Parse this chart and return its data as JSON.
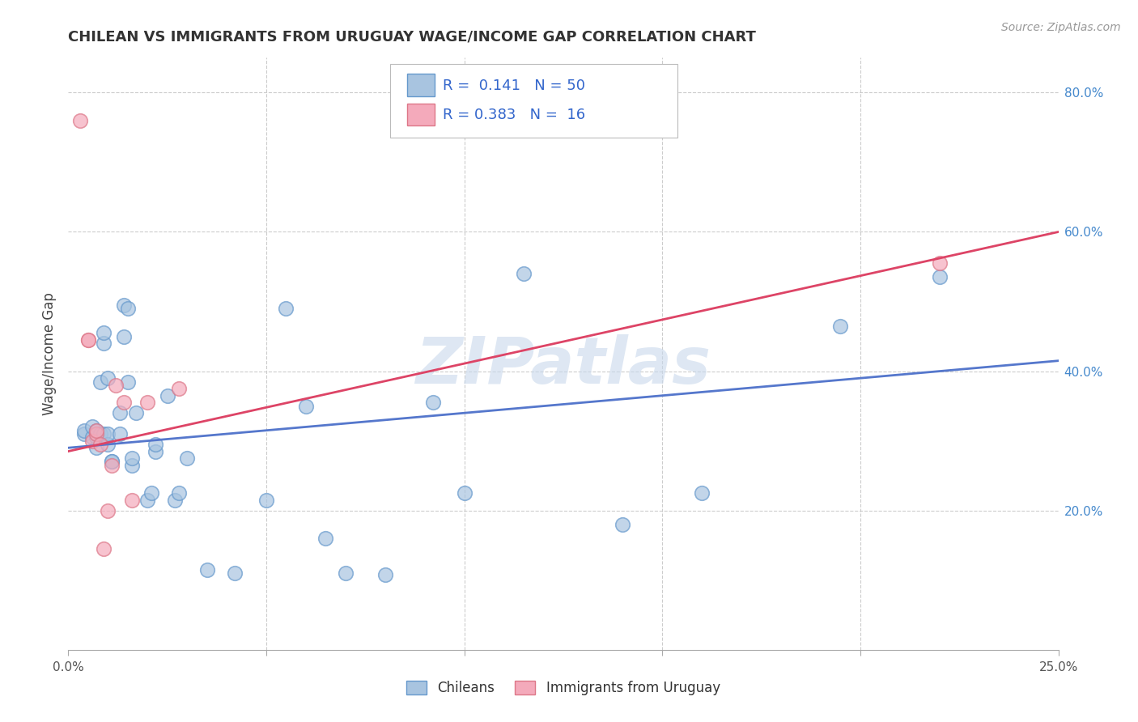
{
  "title": "CHILEAN VS IMMIGRANTS FROM URUGUAY WAGE/INCOME GAP CORRELATION CHART",
  "source": "Source: ZipAtlas.com",
  "ylabel": "Wage/Income Gap",
  "x_min": 0.0,
  "x_max": 0.25,
  "y_min": 0.0,
  "y_max": 0.85,
  "x_ticks": [
    0.0,
    0.05,
    0.1,
    0.15,
    0.2,
    0.25
  ],
  "x_tick_labels": [
    "0.0%",
    "",
    "",
    "",
    "",
    "25.0%"
  ],
  "y_ticks_right": [
    0.2,
    0.4,
    0.6,
    0.8
  ],
  "y_tick_labels_right": [
    "20.0%",
    "40.0%",
    "60.0%",
    "80.0%"
  ],
  "blue_fill": "#A8C4E0",
  "blue_edge": "#6699CC",
  "pink_fill": "#F4AABB",
  "pink_edge": "#DD7788",
  "blue_line_color": "#5577CC",
  "pink_line_color": "#DD4466",
  "R_blue": 0.141,
  "N_blue": 50,
  "R_pink": 0.383,
  "N_pink": 16,
  "legend_label_blue": "Chileans",
  "legend_label_pink": "Immigrants from Uruguay",
  "watermark": "ZIPatlas",
  "blue_scatter_x": [
    0.004,
    0.004,
    0.006,
    0.006,
    0.007,
    0.007,
    0.007,
    0.007,
    0.008,
    0.008,
    0.009,
    0.009,
    0.009,
    0.01,
    0.01,
    0.01,
    0.011,
    0.011,
    0.013,
    0.013,
    0.014,
    0.014,
    0.015,
    0.015,
    0.016,
    0.016,
    0.017,
    0.02,
    0.021,
    0.022,
    0.022,
    0.025,
    0.027,
    0.028,
    0.03,
    0.035,
    0.042,
    0.05,
    0.055,
    0.06,
    0.065,
    0.07,
    0.08,
    0.092,
    0.1,
    0.115,
    0.14,
    0.16,
    0.195,
    0.22
  ],
  "blue_scatter_y": [
    0.31,
    0.315,
    0.305,
    0.32,
    0.29,
    0.305,
    0.31,
    0.315,
    0.31,
    0.385,
    0.44,
    0.455,
    0.31,
    0.295,
    0.31,
    0.39,
    0.27,
    0.27,
    0.31,
    0.34,
    0.45,
    0.495,
    0.385,
    0.49,
    0.265,
    0.275,
    0.34,
    0.215,
    0.225,
    0.285,
    0.295,
    0.365,
    0.215,
    0.225,
    0.275,
    0.115,
    0.11,
    0.215,
    0.49,
    0.35,
    0.16,
    0.11,
    0.108,
    0.355,
    0.225,
    0.54,
    0.18,
    0.225,
    0.465,
    0.535
  ],
  "pink_scatter_x": [
    0.003,
    0.005,
    0.005,
    0.006,
    0.007,
    0.007,
    0.008,
    0.009,
    0.01,
    0.011,
    0.012,
    0.014,
    0.016,
    0.02,
    0.028,
    0.22
  ],
  "pink_scatter_y": [
    0.76,
    0.445,
    0.445,
    0.3,
    0.31,
    0.315,
    0.295,
    0.145,
    0.2,
    0.265,
    0.38,
    0.355,
    0.215,
    0.355,
    0.375,
    0.555
  ],
  "blue_line_x0": 0.0,
  "blue_line_x1": 0.25,
  "blue_line_y0": 0.29,
  "blue_line_y1": 0.415,
  "pink_line_x0": 0.0,
  "pink_line_x1": 0.25,
  "pink_line_y0": 0.285,
  "pink_line_y1": 0.6,
  "grid_color": "#CCCCCC",
  "spine_color": "#AAAAAA"
}
